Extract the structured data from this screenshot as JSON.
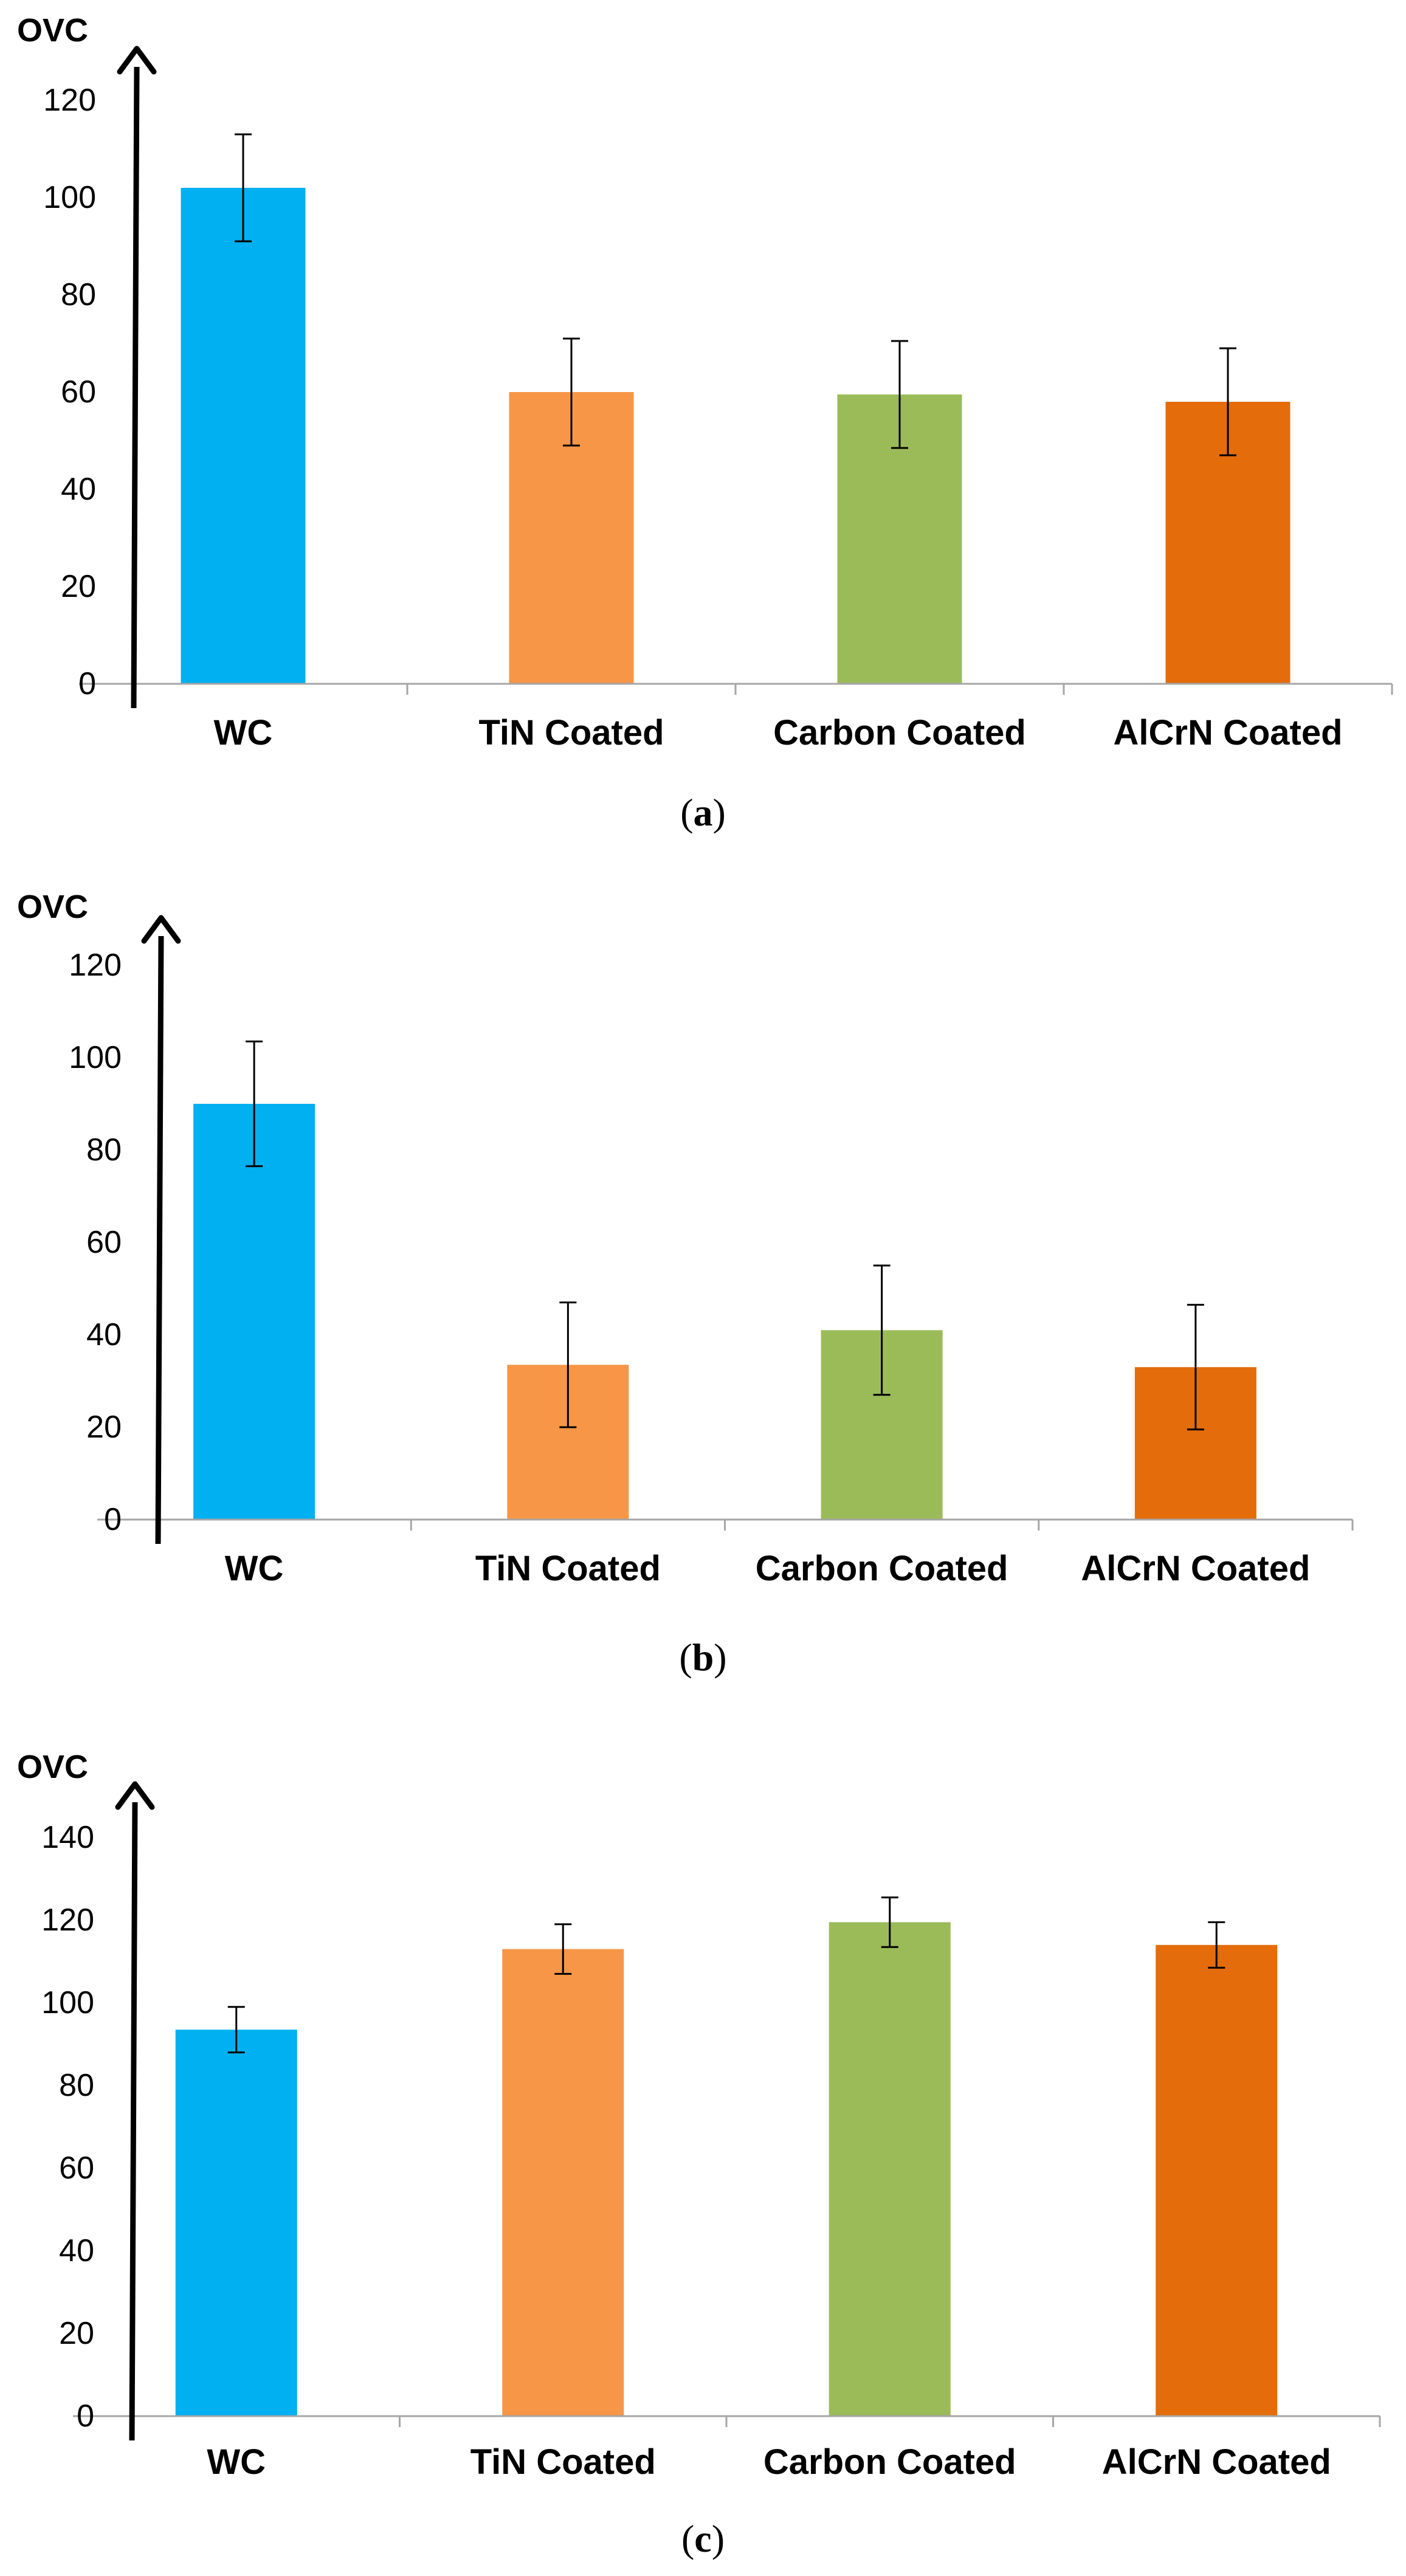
{
  "chart_data": [
    {
      "type": "bar",
      "panel_label": "a",
      "ylabel": "OVC",
      "categories": [
        "WC",
        "TiN Coated",
        "Carbon Coated",
        "AlCrN Coated"
      ],
      "values": [
        102,
        60,
        59.5,
        58
      ],
      "errors": [
        11,
        11,
        11,
        11
      ],
      "yticks": [
        0,
        20,
        40,
        60,
        80,
        100,
        120
      ],
      "ylim": [
        0,
        130
      ],
      "colors": [
        "#00b0f0",
        "#f79646",
        "#9bbb59",
        "#e46c0a"
      ],
      "grid": false
    },
    {
      "type": "bar",
      "panel_label": "b",
      "ylabel": "OVC",
      "categories": [
        "WC",
        "TiN Coated",
        "Carbon Coated",
        "AlCrN Coated"
      ],
      "values": [
        90,
        33.5,
        41,
        33
      ],
      "errors": [
        13.5,
        13.5,
        14,
        13.5
      ],
      "yticks": [
        0,
        20,
        40,
        60,
        80,
        100,
        120
      ],
      "ylim": [
        0,
        130
      ],
      "colors": [
        "#00b0f0",
        "#f79646",
        "#9bbb59",
        "#e46c0a"
      ],
      "grid": false
    },
    {
      "type": "bar",
      "panel_label": "c",
      "ylabel": "OVC",
      "categories": [
        "WC",
        "TiN Coated",
        "Carbon Coated",
        "AlCrN Coated"
      ],
      "values": [
        93.5,
        113,
        119.5,
        114
      ],
      "errors": [
        5.5,
        6,
        6,
        5.5
      ],
      "yticks": [
        0,
        20,
        40,
        60,
        80,
        100,
        120,
        140
      ],
      "ylim": [
        0,
        150
      ],
      "colors": [
        "#00b0f0",
        "#f79646",
        "#9bbb59",
        "#e46c0a"
      ],
      "grid": false
    }
  ]
}
